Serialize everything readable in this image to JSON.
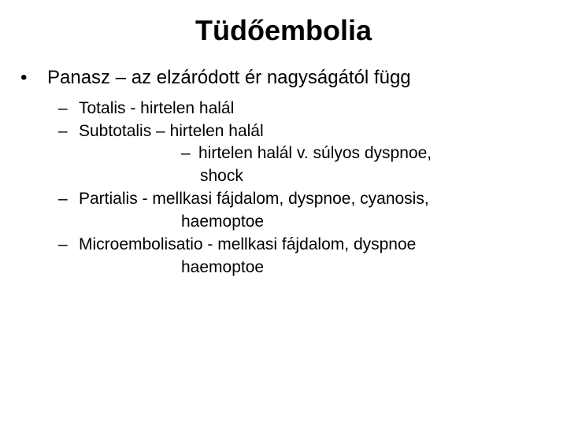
{
  "title": "Tüdőembolia",
  "level1": {
    "bullet": "•",
    "text": "Panasz – az elzáródott ér nagyságától függ"
  },
  "level2": {
    "dash": "–",
    "items": [
      {
        "text": "Totalis  - hirtelen halál"
      },
      {
        "text": "Subtotalis – hirtelen halál",
        "sub": {
          "text": "hirtelen halál v. súlyos dyspnoe,",
          "cont": "shock"
        }
      },
      {
        "text": "Partialis   -  mellkasi fájdalom, dyspnoe, cyanosis,",
        "cont": "haemoptoe"
      },
      {
        "text": "Microembolisatio -  mellkasi fájdalom, dyspnoe",
        "cont": "haemoptoe"
      }
    ]
  },
  "colors": {
    "background": "#ffffff",
    "text": "#000000"
  },
  "typography": {
    "title_fontsize": 36,
    "body_fontsize": 24,
    "sub_fontsize": 21,
    "font_family": "Arial"
  }
}
